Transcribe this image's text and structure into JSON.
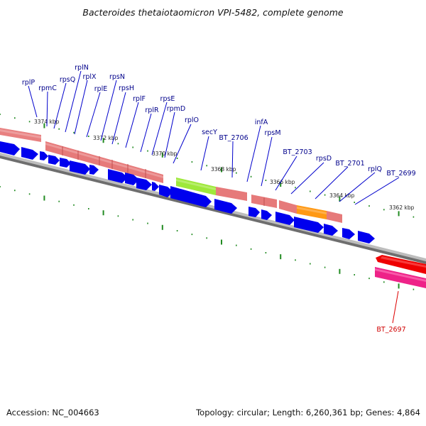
{
  "title": "Bacteroides thetaiotaomicron VPI-5482, complete genome",
  "accession_text": "Accession: NC_004663",
  "summary_text": "Topology: circular; Length: 6,260,361 bp; Genes: 4,864",
  "colors": {
    "gene_arrow": "#0000ee",
    "cds_pink": "#ec8383",
    "cds_green": "#99ee33",
    "cds_orange": "#ff9911",
    "backbone": "#8a8a8a",
    "tick": "#228b22",
    "reverse_red": "#ee0000",
    "reverse_magenta": "#ee2288",
    "label_blue": "#00008b",
    "label_red": "#d00000"
  },
  "kbp_labels": [
    "3374 kbp",
    "3372 kbp",
    "3370 kbp",
    "3368 kbp",
    "3366 kbp",
    "3364 kbp",
    "3362 kbp"
  ],
  "gene_labels": [
    "rplP",
    "rpmC",
    "rpsQ",
    "rplN",
    "rplX",
    "rplE",
    "rpsN",
    "rpsH",
    "rplF",
    "rplR",
    "rpsE",
    "rpmD",
    "rplO",
    "secY",
    "BT_2706",
    "infA",
    "rpsM",
    "BT_2703",
    "rpsD",
    "BT_2701",
    "rplQ",
    "BT_2699"
  ],
  "reverse_gene_labels": [
    "BT_2697"
  ]
}
